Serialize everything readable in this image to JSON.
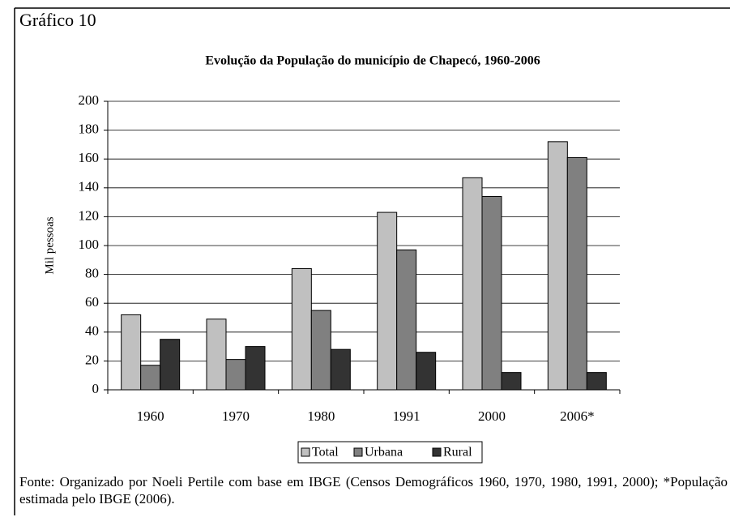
{
  "chart_data": {
    "type": "bar",
    "label": "Gráfico 10",
    "title": "Evolução da População do município de Chapecó, 1960-2006",
    "y_label": "Mil pessoas",
    "categories": [
      "1960",
      "1970",
      "1980",
      "1991",
      "2000",
      "2006*"
    ],
    "series": [
      {
        "name": "Total",
        "color": "#c0c0c0",
        "values": [
          52,
          49,
          84,
          123,
          147,
          172
        ]
      },
      {
        "name": "Urbana",
        "color": "#808080",
        "values": [
          17,
          21,
          55,
          97,
          134,
          161
        ]
      },
      {
        "name": "Rural",
        "color": "#333333",
        "values": [
          35,
          30,
          28,
          26,
          12,
          12
        ]
      }
    ],
    "ylim": [
      0,
      200
    ],
    "yticks": [
      0,
      20,
      40,
      60,
      80,
      100,
      120,
      140,
      160,
      180,
      200
    ],
    "grid": true,
    "legend": "bottom",
    "note": "Fonte: Organizado por Noeli Pertile com base em IBGE (Censos Demográficos 1960, 1970, 1980, 1991, 2000); *População estimada pelo IBGE (2006)."
  }
}
